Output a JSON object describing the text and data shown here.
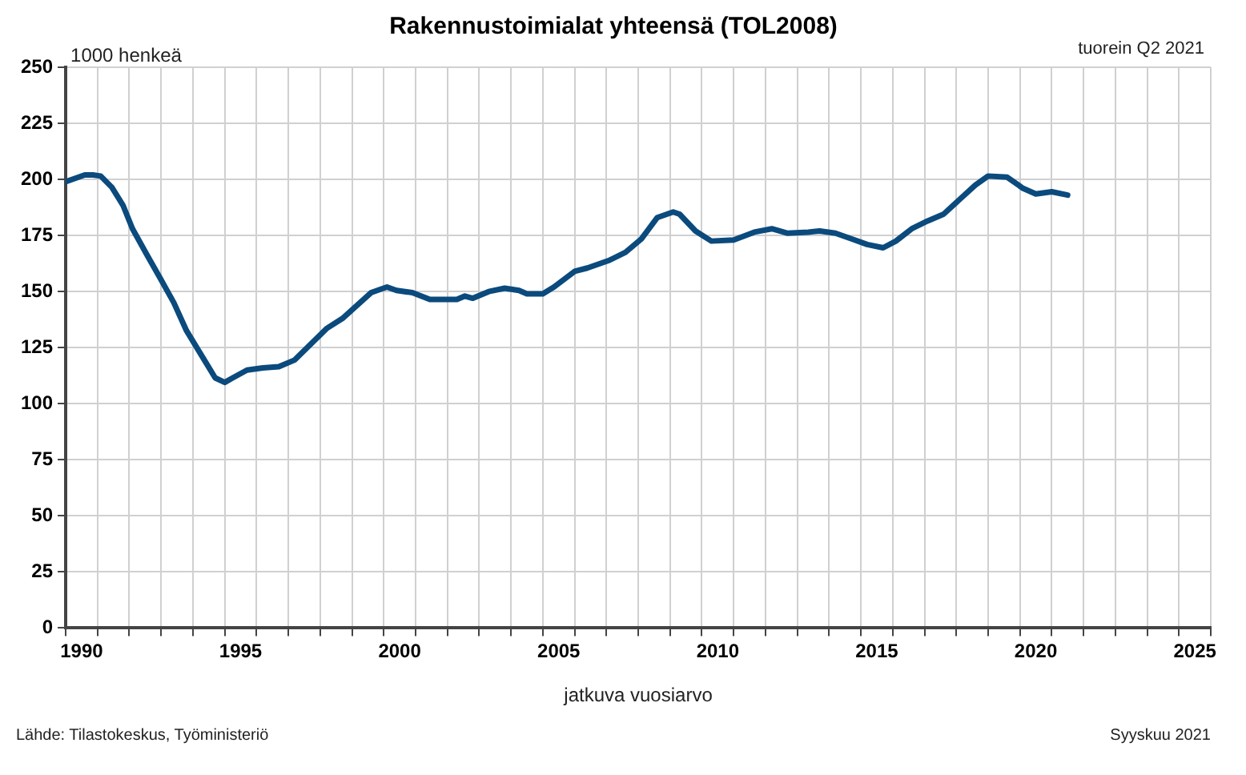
{
  "chart_data": {
    "type": "line",
    "title": "Rakennustoimialat yhteensä (TOL2008)",
    "ylabel": "1000 henkeä",
    "xlabel": "jatkuva vuosiarvo",
    "annotations": [
      "tuorein Q2 2021",
      "Lähde: Tilastokeskus, Työministeriö",
      "Syyskuu 2021"
    ],
    "series": [
      {
        "color": "#0b4a7d",
        "x": [
          1990.0,
          1990.6,
          1990.85,
          1991.1,
          1991.45,
          1991.8,
          1992.1,
          1992.55,
          1992.95,
          1993.4,
          1993.8,
          1994.4,
          1994.7,
          1995.0,
          1995.25,
          1995.7,
          1996.2,
          1996.7,
          1997.2,
          1997.7,
          1998.2,
          1998.7,
          1999.25,
          1999.6,
          2000.1,
          2000.4,
          2000.9,
          2001.45,
          2002.3,
          2002.55,
          2002.8,
          2003.3,
          2003.8,
          2004.25,
          2004.5,
          2005.0,
          2005.35,
          2006.0,
          2006.4,
          2007.1,
          2007.6,
          2008.1,
          2008.6,
          2009.1,
          2009.3,
          2009.8,
          2010.3,
          2011.0,
          2011.65,
          2012.2,
          2012.7,
          2013.35,
          2013.7,
          2014.2,
          2014.7,
          2015.2,
          2015.7,
          2016.1,
          2016.6,
          2017.1,
          2017.6,
          2018.1,
          2018.6,
          2019.0,
          2019.6,
          2020.1,
          2020.5,
          2021.0,
          2021.5
        ],
        "values": [
          199,
          202,
          202,
          201.5,
          196.5,
          188.5,
          178,
          166.5,
          156.5,
          145,
          132.5,
          118.5,
          111.5,
          109.5,
          111.5,
          115,
          116,
          116.5,
          119.5,
          126.5,
          133.5,
          138,
          145,
          149.5,
          152,
          150.5,
          149.5,
          146.5,
          146.5,
          148,
          147,
          150,
          151.5,
          150.5,
          149,
          149,
          152,
          159,
          160.5,
          164,
          167.5,
          173.5,
          183,
          185.5,
          184.5,
          177,
          172.5,
          173,
          176.5,
          178,
          176,
          176.5,
          177,
          176,
          173.5,
          171,
          169.5,
          172.5,
          178,
          181.5,
          184.5,
          191,
          197.5,
          201.5,
          201,
          196,
          193.5,
          194.5,
          193
        ]
      }
    ],
    "xlim": [
      1990,
      2026
    ],
    "xticks": [
      {
        "value": 1990,
        "label": null
      },
      {
        "value": 1990.5,
        "label": "1990"
      },
      {
        "value": 1991,
        "label": null
      },
      {
        "value": 1992,
        "label": null
      },
      {
        "value": 1993,
        "label": null
      },
      {
        "value": 1994,
        "label": null
      },
      {
        "value": 1995,
        "label": null
      },
      {
        "value": 1995.5,
        "label": "1995"
      },
      {
        "value": 1996,
        "label": null
      },
      {
        "value": 1997,
        "label": null
      },
      {
        "value": 1998,
        "label": null
      },
      {
        "value": 1999,
        "label": null
      },
      {
        "value": 2000,
        "label": null
      },
      {
        "value": 2000.5,
        "label": "2000"
      },
      {
        "value": 2001,
        "label": null
      },
      {
        "value": 2002,
        "label": null
      },
      {
        "value": 2003,
        "label": null
      },
      {
        "value": 2004,
        "label": null
      },
      {
        "value": 2005,
        "label": null
      },
      {
        "value": 2005.5,
        "label": "2005"
      },
      {
        "value": 2006,
        "label": null
      },
      {
        "value": 2007,
        "label": null
      },
      {
        "value": 2008,
        "label": null
      },
      {
        "value": 2009,
        "label": null
      },
      {
        "value": 2010,
        "label": null
      },
      {
        "value": 2010.5,
        "label": "2010"
      },
      {
        "value": 2011,
        "label": null
      },
      {
        "value": 2012,
        "label": null
      },
      {
        "value": 2013,
        "label": null
      },
      {
        "value": 2014,
        "label": null
      },
      {
        "value": 2015,
        "label": null
      },
      {
        "value": 2015.5,
        "label": "2015"
      },
      {
        "value": 2016,
        "label": null
      },
      {
        "value": 2017,
        "label": null
      },
      {
        "value": 2018,
        "label": null
      },
      {
        "value": 2019,
        "label": null
      },
      {
        "value": 2020,
        "label": null
      },
      {
        "value": 2020.5,
        "label": "2020"
      },
      {
        "value": 2021,
        "label": null
      },
      {
        "value": 2022,
        "label": null
      },
      {
        "value": 2023,
        "label": null
      },
      {
        "value": 2024,
        "label": null
      },
      {
        "value": 2025,
        "label": null
      },
      {
        "value": 2025.5,
        "label": "2025"
      },
      {
        "value": 2026,
        "label": null
      }
    ],
    "ylim": [
      0,
      250
    ],
    "yticks": [
      0,
      25,
      50,
      75,
      100,
      125,
      150,
      175,
      200,
      225,
      250
    ],
    "grid": true,
    "legend": false,
    "marker": "none",
    "line_style": "solid"
  }
}
